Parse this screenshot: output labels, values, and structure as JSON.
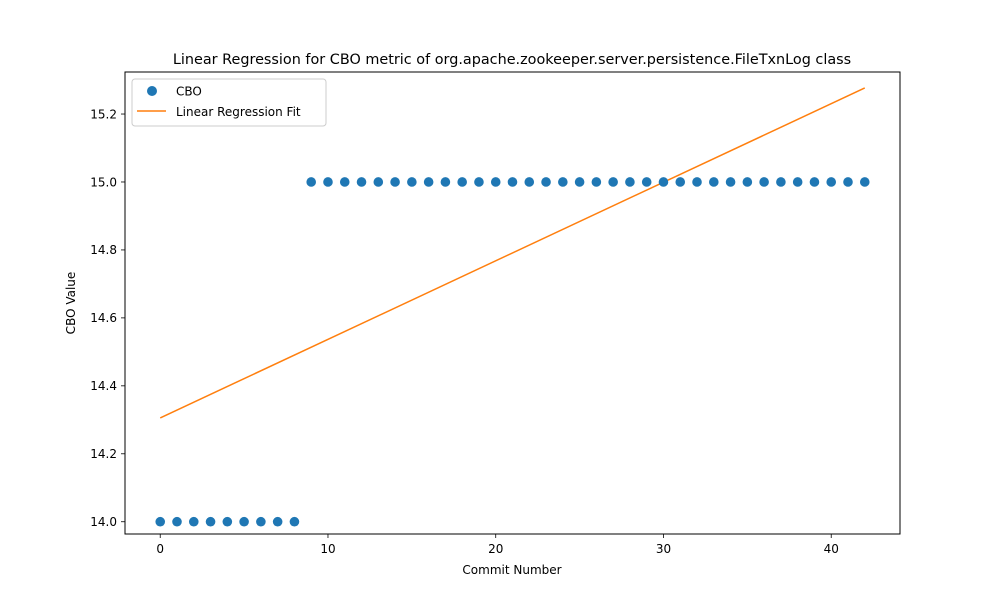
{
  "chart_data": {
    "type": "scatter",
    "title": "Linear Regression for CBO metric of org.apache.zookeeper.server.persistence.FileTxnLog class",
    "xlabel": "Commit Number",
    "ylabel": "CBO Value",
    "xlim": [
      -2.1,
      44.1
    ],
    "ylim": [
      13.9639,
      15.3237
    ],
    "xticks": [
      0,
      10,
      20,
      30,
      40
    ],
    "yticks": [
      14.0,
      14.2,
      14.4,
      14.6,
      14.8,
      15.0,
      15.2
    ],
    "xtick_labels": [
      "0",
      "10",
      "20",
      "30",
      "40"
    ],
    "ytick_labels": [
      "14.0",
      "14.2",
      "14.4",
      "14.6",
      "14.8",
      "15.0",
      "15.2"
    ],
    "grid": false,
    "legend_position": "top-left",
    "legend": [
      {
        "label": "CBO",
        "marker": "circle",
        "color": "#1f77b4"
      },
      {
        "label": "Linear Regression Fit",
        "marker": "line",
        "color": "#ff7f0e"
      }
    ],
    "series": [
      {
        "name": "CBO",
        "kind": "scatter",
        "color": "#1f77b4",
        "x": [
          0,
          1,
          2,
          3,
          4,
          5,
          6,
          7,
          8,
          9,
          10,
          11,
          12,
          13,
          14,
          15,
          16,
          17,
          18,
          19,
          20,
          21,
          22,
          23,
          24,
          25,
          26,
          27,
          28,
          29,
          30,
          31,
          32,
          33,
          34,
          35,
          36,
          37,
          38,
          39,
          40,
          41,
          42
        ],
        "y": [
          14,
          14,
          14,
          14,
          14,
          14,
          14,
          14,
          14,
          15,
          15,
          15,
          15,
          15,
          15,
          15,
          15,
          15,
          15,
          15,
          15,
          15,
          15,
          15,
          15,
          15,
          15,
          15,
          15,
          15,
          15,
          15,
          15,
          15,
          15,
          15,
          15,
          15,
          15,
          15,
          15,
          15,
          15
        ]
      },
      {
        "name": "Linear Regression Fit",
        "kind": "line",
        "color": "#ff7f0e",
        "x": [
          0,
          42
        ],
        "y": [
          14.3056,
          15.2767
        ]
      }
    ]
  }
}
